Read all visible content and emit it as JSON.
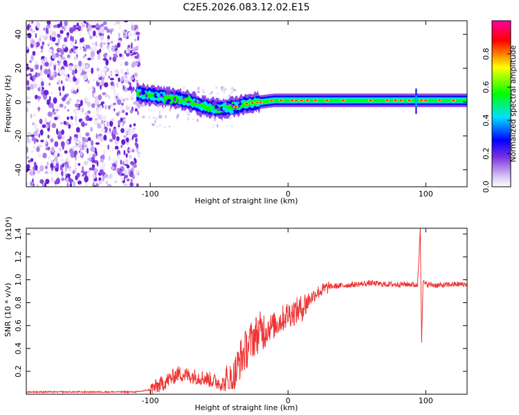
{
  "figure_title": "C2E5.2026.083.12.02.E15",
  "chart_data": [
    {
      "type": "heatmap",
      "title": "C2E5.2026.083.12.02.E15",
      "xlabel": "Height of straight line (km)",
      "ylabel": "Frequency (Hz)",
      "xlim": [
        -190,
        130
      ],
      "ylim": [
        -50,
        48
      ],
      "xticks": [
        -100,
        0,
        100
      ],
      "xtick_labels": [
        "-100",
        "0",
        "100"
      ],
      "yticks": [
        40,
        20,
        0,
        -20,
        -40
      ],
      "ytick_labels": [
        "40",
        "20",
        "0",
        "-20",
        "-40"
      ],
      "noise_region_x": [
        -190,
        -108
      ],
      "band_center_hz": {
        "x": [
          -110,
          -100,
          -90,
          -80,
          -70,
          -60,
          -50,
          -40,
          -30,
          -20,
          -10,
          0,
          20,
          40,
          60,
          80,
          95,
          100,
          130
        ],
        "y": [
          5,
          4,
          3,
          2,
          0,
          -3,
          -4,
          -3,
          -1,
          0,
          1,
          1,
          1,
          1,
          1,
          1,
          1,
          1,
          1
        ]
      },
      "colorbar": {
        "label": "Normalized spectral amplitude",
        "range": [
          0.0,
          1.0
        ],
        "ticks": [
          0.0,
          0.2,
          0.4,
          0.6,
          0.8
        ],
        "tick_labels": [
          "0.0",
          "0.2",
          "0.4",
          "0.6",
          "0.8"
        ],
        "colors": [
          "#ffffff",
          "#7b2fe0",
          "#0000ff",
          "#00e0ff",
          "#00ff00",
          "#ffff00",
          "#ff0000",
          "#ff00a0"
        ]
      }
    },
    {
      "type": "line",
      "xlabel": "Height of straight line (km)",
      "ylabel": "SNR (10 * v/v)",
      "y_scale_label": "(x10⁴)",
      "xlim": [
        -190,
        130
      ],
      "ylim": [
        0,
        1.45
      ],
      "xticks": [
        -100,
        0,
        100
      ],
      "xtick_labels": [
        "-100",
        "0",
        "100"
      ],
      "yticks": [
        0.2,
        0.4,
        0.6,
        0.8,
        1.0,
        1.2,
        1.4
      ],
      "ytick_labels": [
        "0.2",
        "0.4",
        "0.6",
        "0.8",
        "1.0",
        "1.2",
        "1.4"
      ],
      "series": [
        {
          "name": "SNR",
          "color": "#ee3333",
          "x": [
            -190,
            -150,
            -110,
            -100,
            -90,
            -80,
            -70,
            -60,
            -50,
            -45,
            -40,
            -35,
            -30,
            -25,
            -20,
            -15,
            -10,
            -5,
            0,
            5,
            10,
            15,
            20,
            30,
            40,
            50,
            60,
            70,
            80,
            90,
            94,
            96,
            97,
            98,
            100,
            110,
            120,
            130
          ],
          "y": [
            0.02,
            0.02,
            0.02,
            0.04,
            0.1,
            0.18,
            0.16,
            0.14,
            0.1,
            0.09,
            0.11,
            0.3,
            0.4,
            0.5,
            0.55,
            0.58,
            0.6,
            0.65,
            0.7,
            0.72,
            0.75,
            0.82,
            0.88,
            0.94,
            0.95,
            0.96,
            0.97,
            0.96,
            0.96,
            0.96,
            0.95,
            1.45,
            0.45,
            0.98,
            0.96,
            0.95,
            0.96,
            0.96
          ]
        }
      ]
    }
  ]
}
